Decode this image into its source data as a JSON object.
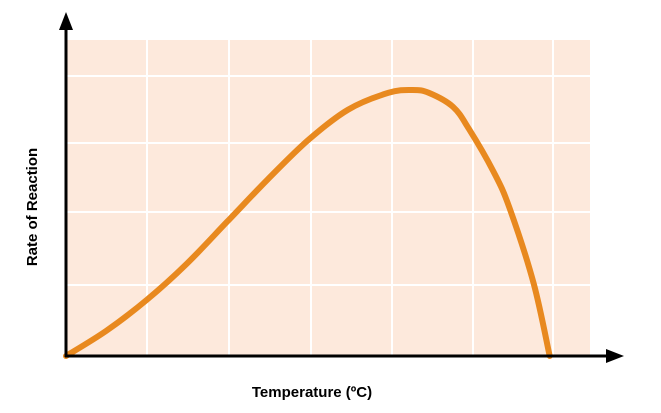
{
  "chart_data": {
    "type": "line",
    "title": "",
    "xlabel": "Temperature (ºC)",
    "ylabel": "Rate of Reaction",
    "xlim": [
      0,
      65
    ],
    "ylim": [
      0,
      100
    ],
    "grid": true,
    "x": [
      0,
      5,
      10,
      15,
      20,
      25,
      30,
      35,
      40,
      43,
      45,
      48,
      50,
      53,
      55,
      58,
      60
    ],
    "series": [
      {
        "values": [
          0,
          9,
          20,
          33,
          48,
          63,
          77,
          88,
          94,
          95,
          94,
          89,
          81,
          66,
          53,
          26,
          0
        ]
      }
    ],
    "colors": {
      "plot_background": "#fde9dc",
      "grid": "#ffffff",
      "line": "#e8891f",
      "axis": "#000000"
    }
  }
}
